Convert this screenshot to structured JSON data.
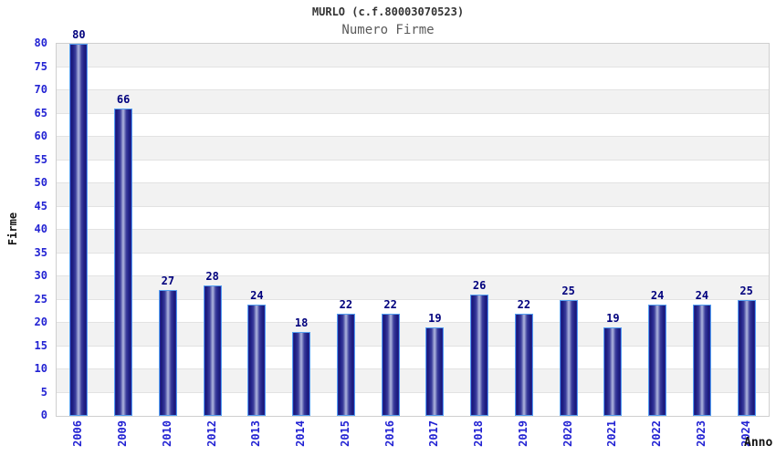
{
  "chart_data": {
    "type": "bar",
    "title": "MURLO (c.f.80003070523)",
    "subtitle": "Numero Firme",
    "xlabel": "Anno",
    "ylabel": "Firme",
    "ylim": [
      0,
      80
    ],
    "ytick_step": 5,
    "yticks": [
      0,
      5,
      10,
      15,
      20,
      25,
      30,
      35,
      40,
      45,
      50,
      55,
      60,
      65,
      70,
      75,
      80
    ],
    "grid": "alternating horizontal bands every 5 units, gray band at top (75-80)",
    "legend": "none",
    "categories": [
      "2006",
      "2009",
      "2010",
      "2012",
      "2013",
      "2014",
      "2015",
      "2016",
      "2017",
      "2018",
      "2019",
      "2020",
      "2021",
      "2022",
      "2023",
      "2024"
    ],
    "values": [
      80,
      66,
      27,
      28,
      24,
      18,
      22,
      22,
      19,
      26,
      22,
      25,
      19,
      24,
      24,
      25
    ]
  },
  "colors": {
    "title": "#333333",
    "subtitle": "#5a5a5a",
    "tick_labels": "#2323d3",
    "value_labels": "#00007d",
    "axis_titles": "#111111",
    "band_gray": "#f2f2f2",
    "band_white": "#ffffff",
    "grid_line": "#e2e2e2",
    "plot_border": "#cfcfcf",
    "bar_border_highlight": "#55a0f0",
    "bar_dark": "#1a1a70",
    "bar_light_center": "#b0b6de",
    "bar_edge_blue": "#2d2dcc"
  }
}
